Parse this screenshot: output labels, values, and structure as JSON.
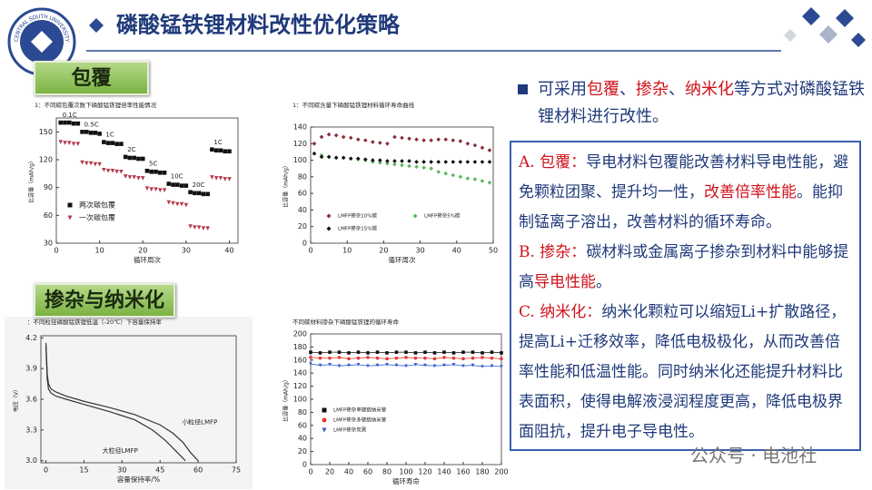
{
  "header": {
    "title": "磷酸锰铁锂材料改性优化策略",
    "logo_text": "CENTRAL SOUTH UNIVERSITY"
  },
  "sections": [
    "包覆",
    "掺杂与纳米化"
  ],
  "bullet": [
    {
      "text": "可采用"
    },
    {
      "text": "包覆",
      "emphasis": true
    },
    {
      "text": "、"
    },
    {
      "text": "掺杂",
      "emphasis": true
    },
    {
      "text": "、"
    },
    {
      "text": "纳米化",
      "emphasis": true
    },
    {
      "text": "等方式对磷酸锰铁锂材料进行改性。"
    }
  ],
  "paragraphs": [
    [
      {
        "text": "A. 包覆：",
        "emphasis": true
      },
      {
        "text": "导电材料包覆能改善材料导电性能，避免颗粒团聚、提升均一性，"
      },
      {
        "text": "改善倍率性能",
        "emphasis": true
      },
      {
        "text": "。能抑制锰离子溶出，改善材料的循环寿命。"
      }
    ],
    [
      {
        "text": "B. 掺杂：",
        "emphasis": true
      },
      {
        "text": "碳材料或金属离子掺杂到材料中能够提高"
      },
      {
        "text": "导电性能",
        "emphasis": true
      },
      {
        "text": "。"
      }
    ],
    [
      {
        "text": "C. 纳米化：",
        "emphasis": true
      },
      {
        "text": "纳米化颗粒可以缩短Li+扩散路径，提高Li+迁移效率，降低电极极化，从而改善倍率性能和低温性能。同时纳米化还能提升材料比表面积，使得电解液浸润程度更高，降低电极界面阻抗，提升电子导电性。"
      }
    ]
  ],
  "watermark": "公众号 · 电池社",
  "charts": [
    {
      "type": "scatter",
      "title": "1：不同碳包覆次数下磷酸锰铁锂倍率性能情况",
      "xlabel": "循环周次",
      "ylabel": "比容量（mAh/g）",
      "xlim": [
        0,
        42
      ],
      "xticks": [
        0,
        10,
        20,
        30,
        40
      ],
      "ylim": [
        30,
        165
      ],
      "yticks": [
        30,
        60,
        90,
        120,
        150
      ],
      "legend": "lower left",
      "x": [
        1,
        2,
        3,
        4,
        5,
        6,
        7,
        8,
        9,
        10,
        11,
        12,
        13,
        14,
        15,
        16,
        17,
        18,
        19,
        20,
        21,
        22,
        23,
        24,
        25,
        26,
        27,
        28,
        29,
        30,
        31,
        32,
        33,
        34,
        35,
        36,
        37,
        38,
        39,
        40
      ],
      "series": [
        {
          "name": "两次碳包覆",
          "color": "#111111",
          "marker": "square",
          "values": [
            160,
            160,
            160,
            159,
            159,
            150,
            150,
            149,
            149,
            148,
            139,
            138,
            138,
            137,
            137,
            123,
            122,
            122,
            121,
            121,
            108,
            107,
            107,
            106,
            106,
            94,
            93,
            93,
            92,
            92,
            85,
            84,
            84,
            83,
            83,
            131,
            130,
            130,
            129,
            129
          ]
        },
        {
          "name": "一次碳包覆",
          "color": "#b5394a",
          "marker": "triangle",
          "values": [
            139,
            138,
            138,
            137,
            137,
            117,
            116,
            116,
            115,
            115,
            109,
            108,
            108,
            107,
            107,
            102,
            101,
            101,
            100,
            100,
            89,
            88,
            88,
            87,
            87,
            74,
            73,
            72,
            72,
            71,
            48,
            47,
            47,
            46,
            46,
            101,
            100,
            100,
            99,
            99
          ]
        }
      ],
      "annotations": [
        "0.1C",
        "0.5C",
        "1C",
        "2C",
        "5C",
        "10C",
        "20C",
        "1C"
      ]
    },
    {
      "type": "scatter",
      "title": "1：不同碳含量下磷酸锰铁锂材料循环寿命曲线",
      "xlabel": "循环周次",
      "ylabel": "比容量（mAh/g）",
      "xlim": [
        0,
        50
      ],
      "xticks": [
        0,
        10,
        20,
        30,
        40,
        50
      ],
      "ylim": [
        0,
        140
      ],
      "yticks": [
        0,
        20,
        40,
        60,
        80,
        100,
        120,
        140
      ],
      "legend": "lower center",
      "x": [
        1,
        3,
        5,
        7,
        9,
        11,
        13,
        15,
        17,
        19,
        21,
        23,
        25,
        27,
        29,
        31,
        33,
        35,
        37,
        39,
        41,
        43,
        45,
        47,
        49
      ],
      "series": [
        {
          "name": "LMFP掺杂10%碳",
          "color": "#8b2a3a",
          "marker": "diamond",
          "values": [
            120,
            128,
            131,
            130,
            128,
            127,
            125,
            124,
            122,
            121,
            120,
            128,
            127,
            126,
            125,
            124,
            124,
            125,
            125,
            124,
            123,
            120,
            118,
            115,
            112
          ]
        },
        {
          "name": "LMFP掺杂5%碳",
          "color": "#5cb85c",
          "marker": "diamond",
          "values": [
            108,
            106,
            104,
            103,
            103,
            102,
            101,
            100,
            98,
            97,
            96,
            95,
            94,
            93,
            92,
            91,
            90,
            86,
            84,
            82,
            80,
            78,
            77,
            75,
            73
          ]
        },
        {
          "name": "LMFP掺杂15%碳",
          "color": "#111111",
          "marker": "diamond",
          "values": [
            108,
            104,
            104,
            103,
            103,
            102,
            102,
            101,
            100,
            100,
            99,
            99,
            99,
            99,
            98,
            98,
            98,
            98,
            98,
            98,
            98,
            98,
            98,
            98,
            98
          ]
        }
      ]
    },
    {
      "type": "line",
      "title": "：不同粒径磷酸锰铁锂低温（-20℃）下容量保持率",
      "xlabel": "容量保持率/%",
      "ylabel": "电压（V）",
      "xlim": [
        -2,
        75
      ],
      "xticks": [
        0,
        15,
        30,
        45,
        60,
        75
      ],
      "ylim": [
        2.98,
        4.22
      ],
      "yticks": [
        {
          "value": 3.0,
          "label": "3.0"
        },
        3.3,
        3.6,
        3.9,
        4.2
      ],
      "series": [
        {
          "name": "小粒径LMFP",
          "color": "#333333",
          "x": [
            0,
            0.5,
            1,
            2,
            4,
            8,
            15,
            25,
            35,
            45,
            50,
            54,
            57,
            60
          ],
          "values": [
            4.15,
            3.85,
            3.75,
            3.7,
            3.67,
            3.63,
            3.58,
            3.52,
            3.45,
            3.35,
            3.27,
            3.18,
            3.08,
            3.0
          ]
        },
        {
          "name": "大粒径LMFP",
          "color": "#333333",
          "x": [
            0,
            0.5,
            1,
            2,
            4,
            8,
            15,
            25,
            35,
            42,
            47,
            51,
            53,
            55
          ],
          "values": [
            4.12,
            3.8,
            3.7,
            3.66,
            3.63,
            3.6,
            3.55,
            3.48,
            3.4,
            3.3,
            3.2,
            3.1,
            3.05,
            3.0
          ]
        }
      ]
    },
    {
      "type": "line",
      "title": "不同碳材料掺杂下磷酸锰铁锂的循环寿命",
      "xlabel": "循环寿命",
      "ylabel": "比容量（mAh/g）",
      "xlim": [
        0,
        200
      ],
      "xticks": [
        0,
        20,
        40,
        60,
        80,
        100,
        120,
        140,
        160,
        180,
        200
      ],
      "ylim": [
        0,
        200
      ],
      "yticks": [
        0,
        20,
        40,
        60,
        80,
        100,
        120,
        140,
        160,
        180,
        200
      ],
      "legend": "lower left",
      "x": [
        0,
        10,
        20,
        30,
        40,
        50,
        60,
        70,
        80,
        90,
        100,
        110,
        120,
        130,
        140,
        150,
        160,
        170,
        180,
        190,
        200
      ],
      "series": [
        {
          "name": "LMFP掺杂单壁碳纳米管",
          "color": "#111111",
          "marker": "square",
          "values": [
            172,
            171,
            172,
            172,
            171,
            172,
            171,
            172,
            171,
            172,
            172,
            171,
            172,
            171,
            172,
            171,
            172,
            172,
            171,
            172,
            171
          ]
        },
        {
          "name": "LMFP掺杂多壁碳纳米管",
          "color": "#e53935",
          "marker": "circle",
          "values": [
            164,
            163,
            163,
            164,
            162,
            163,
            164,
            163,
            162,
            163,
            164,
            163,
            163,
            162,
            164,
            163,
            162,
            163,
            164,
            163,
            162
          ]
        },
        {
          "name": "LMFP掺杂炭黑",
          "color": "#2d5bd0",
          "marker": "triangle",
          "values": [
            154,
            152,
            153,
            151,
            152,
            153,
            151,
            152,
            153,
            152,
            151,
            153,
            152,
            151,
            152,
            153,
            151,
            152,
            150,
            151,
            150
          ]
        }
      ]
    }
  ]
}
